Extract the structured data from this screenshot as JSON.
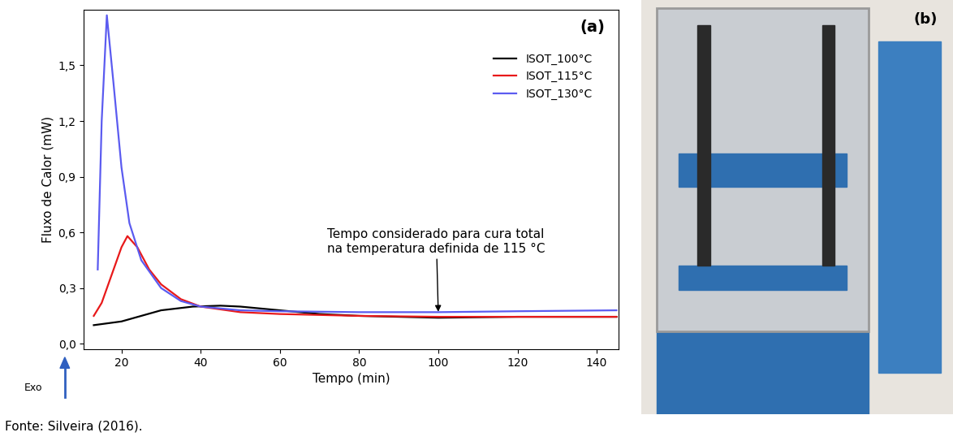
{
  "chart_data": {
    "type": "line",
    "panel_label": "(a)",
    "x_label": "Tempo (min)",
    "y_label": "Fluxo de Calor (mW)",
    "exo_label": "Exo",
    "xlim": [
      10.5,
      145.5
    ],
    "ylim": [
      -0.03,
      1.8
    ],
    "xticks": [
      20,
      40,
      60,
      80,
      100,
      120,
      140
    ],
    "yticks": [
      {
        "value": 0.0,
        "label": "0,0"
      },
      {
        "value": 0.3,
        "label": "0,3"
      },
      {
        "value": 0.6,
        "label": "0,6"
      },
      {
        "value": 0.9,
        "label": "0,9"
      },
      {
        "value": 1.2,
        "label": "1,2"
      },
      {
        "value": 1.5,
        "label": "1,5"
      }
    ],
    "legend": "upper right",
    "series": [
      {
        "name": "ISOT_100°C",
        "color": "#000000",
        "x": [
          13,
          20,
          25,
          30,
          38,
          45,
          50,
          60,
          70,
          80,
          100,
          120,
          145
        ],
        "values": [
          0.1,
          0.12,
          0.15,
          0.18,
          0.2,
          0.205,
          0.2,
          0.18,
          0.16,
          0.15,
          0.14,
          0.145,
          0.145
        ]
      },
      {
        "name": "ISOT_115°C",
        "color": "#e8191a",
        "x": [
          13,
          15,
          18,
          20,
          21.5,
          24,
          27,
          30,
          35,
          40,
          50,
          60,
          80,
          100,
          120,
          145
        ],
        "values": [
          0.15,
          0.22,
          0.4,
          0.52,
          0.58,
          0.52,
          0.4,
          0.32,
          0.24,
          0.2,
          0.17,
          0.16,
          0.15,
          0.145,
          0.145,
          0.145
        ]
      },
      {
        "name": "ISOT_130°C",
        "color": "#5b5bf0",
        "x": [
          14,
          15,
          16.3,
          18,
          20,
          22,
          25,
          30,
          35,
          40,
          50,
          60,
          80,
          100,
          120,
          145
        ],
        "values": [
          0.4,
          1.2,
          1.77,
          1.4,
          0.95,
          0.65,
          0.45,
          0.3,
          0.23,
          0.2,
          0.18,
          0.175,
          0.17,
          0.17,
          0.175,
          0.18
        ]
      }
    ],
    "annotations": [
      {
        "text": "Tempo considerado para cura total\nna temperatura definida de 115 °C",
        "x": 100,
        "y": 0.16,
        "text_x": 72,
        "text_y": 0.48
      }
    ]
  },
  "photo": {
    "label": "(b)"
  },
  "source": "Fonte: Silveira (2016)."
}
